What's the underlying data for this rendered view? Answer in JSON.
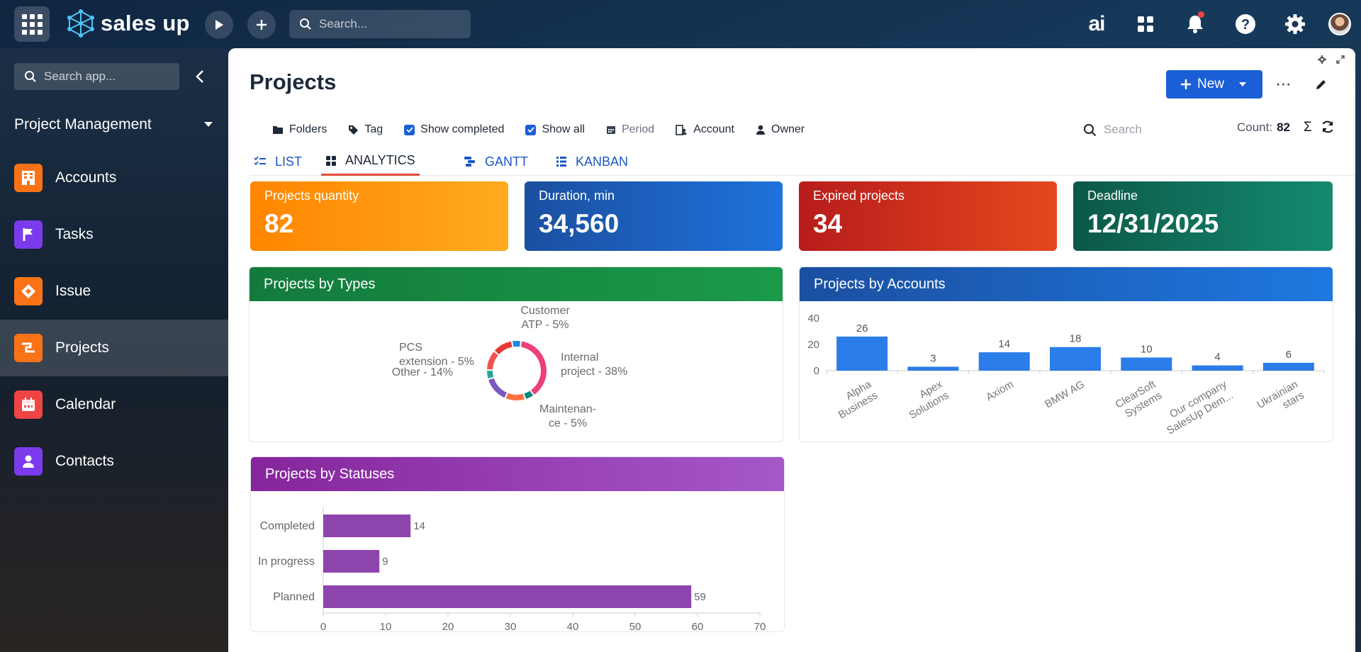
{
  "topbar": {
    "logo_text": "sales up",
    "search_placeholder": "Search...",
    "ai_label": "ai",
    "icons": [
      "app-grid-icon",
      "play-icon",
      "plus-icon",
      "search-icon",
      "ai-icon",
      "apps-icon",
      "bell-icon",
      "help-icon",
      "gear-icon",
      "avatar"
    ]
  },
  "sidebar": {
    "search_placeholder": "Search app...",
    "module": "Project Management",
    "items": [
      {
        "label": "Accounts",
        "color": "#f97316",
        "icon": "building-icon"
      },
      {
        "label": "Tasks",
        "color": "#7c3aed",
        "icon": "flag-icon"
      },
      {
        "label": "Issue",
        "color": "#f97316",
        "icon": "issue-icon"
      },
      {
        "label": "Projects",
        "color": "#f97316",
        "icon": "projects-icon",
        "active": true
      },
      {
        "label": "Calendar",
        "color": "#ef4444",
        "icon": "calendar-icon"
      },
      {
        "label": "Contacts",
        "color": "#7c3aed",
        "icon": "contact-icon"
      }
    ]
  },
  "page": {
    "title": "Projects",
    "new_label": "New",
    "more_label": "⋯",
    "filters": [
      {
        "label": "Folders",
        "icon": "folder-icon"
      },
      {
        "label": "Tag",
        "icon": "tag-icon"
      },
      {
        "label": "Show completed",
        "icon": "checkbox-icon",
        "checked": true
      },
      {
        "label": "Show all",
        "icon": "checkbox-icon",
        "checked": true
      },
      {
        "label": "Period",
        "icon": "calendar-icon",
        "muted": true
      },
      {
        "label": "Account",
        "icon": "account-icon"
      },
      {
        "label": "Owner",
        "icon": "person-icon"
      }
    ],
    "search_placeholder": "Search",
    "count_label": "Count:",
    "count_value": "82",
    "sum_symbol": "Σ",
    "tabs": [
      {
        "label": "LIST",
        "icon": "list-check-icon"
      },
      {
        "label": "ANALYTICS",
        "icon": "dashboard-icon",
        "active": true
      },
      {
        "label": "GANTT",
        "icon": "gantt-icon"
      },
      {
        "label": "KANBAN",
        "icon": "kanban-icon"
      }
    ]
  },
  "kpis": [
    {
      "label": "Projects quantity",
      "value": "82",
      "colors": [
        "#ff8c00",
        "#ffa91a"
      ]
    },
    {
      "label": "Duration, min",
      "value": "34,560",
      "colors": [
        "#1b4fa0",
        "#1e6fd6"
      ]
    },
    {
      "label": "Expired projects",
      "value": "34",
      "colors": [
        "#b71c1c",
        "#e2461e"
      ]
    },
    {
      "label": "Deadline",
      "value": "12/31/2025",
      "colors": [
        "#0d5c4c",
        "#14876d"
      ]
    }
  ],
  "panels": {
    "types_title": "Projects by Types",
    "accounts_title": "Projects by Accounts",
    "statuses_title": "Projects by Statuses"
  },
  "chart_data": [
    {
      "type": "pie",
      "title": "Projects by Types",
      "donut": true,
      "slices": [
        {
          "label": "Internal project - 38%",
          "value": 38,
          "color": "#ec407a"
        },
        {
          "label": "Maintenan-ce - 5%",
          "value": 5,
          "color": "#00897b"
        },
        {
          "label": "Other - 14%",
          "value": 14,
          "color": "#7e57c2"
        },
        {
          "label": "PCS extension - 5%",
          "value": 5,
          "color": "#26a69a"
        },
        {
          "label": "Customer ATP - 5%",
          "value": 5,
          "color": "#1e88e5"
        }
      ],
      "other_segments_colors": [
        "#ff7043",
        "#ef5350",
        "#e53935"
      ]
    },
    {
      "type": "bar",
      "title": "Projects by Accounts",
      "categories": [
        "Alpha Business",
        "Apex Solutions",
        "Axiom",
        "BMW AG",
        "ClearSoft Systems",
        "Our company SalesUp Dem...",
        "Ukrainian stars"
      ],
      "values": [
        26,
        3,
        14,
        18,
        10,
        4,
        6
      ],
      "yticks": [
        0,
        20,
        40
      ],
      "ylim": [
        0,
        40
      ],
      "color": "#2b7de9"
    },
    {
      "type": "bar",
      "orientation": "horizontal",
      "title": "Projects by Statuses",
      "categories": [
        "Completed",
        "In progress",
        "Planned"
      ],
      "values": [
        14,
        9,
        59
      ],
      "xticks": [
        0,
        10,
        20,
        30,
        40,
        50,
        60,
        70
      ],
      "xlim": [
        0,
        70
      ],
      "color": "#8e44ad"
    }
  ]
}
